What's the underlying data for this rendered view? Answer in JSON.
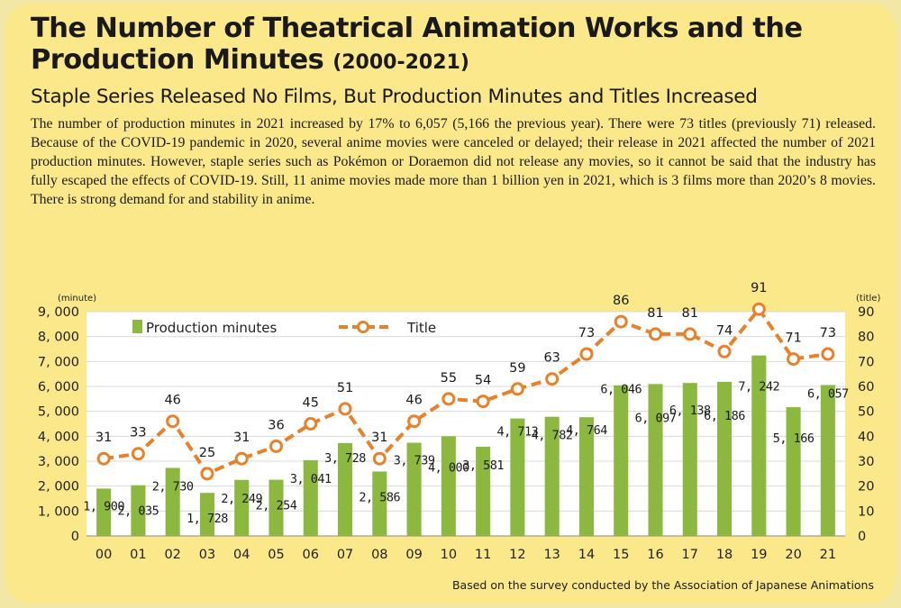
{
  "title_main": "The Number of Theatrical Animation Works and the Production Minutes",
  "title_years": "(2000-2021)",
  "subtitle": "Staple Series Released No Films, But Production Minutes and Titles Increased",
  "body_text": "The number of production minutes in 2021 increased by 17% to 6,057 (5,166 the previous year). There were 73 titles (previously 71) released. Because of the COVID-19 pandemic in 2020, several anime movies were canceled or delayed; their release in 2021 affected the number of 2021 production minutes. However, staple series such as Pokémon or Doraemon did not release any movies, so it cannot be said that the industry has fully escaped the effects of COVID-19. Still, 11 anime movies made more than 1 billion yen in 2021, which is 3 films more than 2020’s 8 movies. There is strong demand for and stability in anime.",
  "source": "Based on the survey conducted by the Association of Japanese Animations",
  "colors": {
    "bar": "#8cb83f",
    "line": "#e8812b",
    "card": "#fbe88a",
    "plot_bg": "#ffffff",
    "grid": "#d9d9d9"
  },
  "chart_data": {
    "type": "bar+line",
    "categories": [
      "00",
      "01",
      "02",
      "03",
      "04",
      "05",
      "06",
      "07",
      "08",
      "09",
      "10",
      "11",
      "12",
      "13",
      "14",
      "15",
      "16",
      "17",
      "18",
      "19",
      "20",
      "21"
    ],
    "series": [
      {
        "name": "Production minutes",
        "type": "bar",
        "axis": "left",
        "values": [
          1900,
          2035,
          2730,
          1728,
          2249,
          2254,
          3041,
          3728,
          2586,
          3739,
          4000,
          3581,
          4713,
          4782,
          4764,
          6046,
          6097,
          6138,
          6186,
          7242,
          5166,
          6057
        ],
        "labels": [
          "1, 900",
          "2, 035",
          "2, 730",
          "1, 728",
          "2, 249",
          "2, 254",
          "3, 041",
          "3, 728",
          "2, 586",
          "3, 739",
          "4, 000",
          "3, 581",
          "4, 713",
          "4, 782",
          "4, 764",
          "6, 046",
          "6, 097",
          "6, 138",
          "6, 186",
          "7, 242",
          "5, 166",
          "6, 057"
        ]
      },
      {
        "name": "Title",
        "type": "line",
        "axis": "right",
        "values": [
          31,
          33,
          46,
          25,
          31,
          36,
          45,
          51,
          31,
          46,
          55,
          54,
          59,
          63,
          73,
          86,
          81,
          81,
          74,
          91,
          71,
          73
        ]
      }
    ],
    "y_left": {
      "unit": "(minute)",
      "range": [
        0,
        9000
      ],
      "ticks": [
        "0",
        "1, 000",
        "2, 000",
        "3, 000",
        "4, 000",
        "5, 000",
        "6, 000",
        "7, 000",
        "8, 000",
        "9, 000"
      ]
    },
    "y_right": {
      "unit": "(title)",
      "range": [
        0,
        90
      ],
      "ticks": [
        "0",
        "10",
        "20",
        "30",
        "40",
        "50",
        "60",
        "70",
        "80",
        "90"
      ]
    },
    "legend": {
      "position": "top-left",
      "bar_label": "Production minutes",
      "line_label": "Title"
    },
    "grid": true
  }
}
